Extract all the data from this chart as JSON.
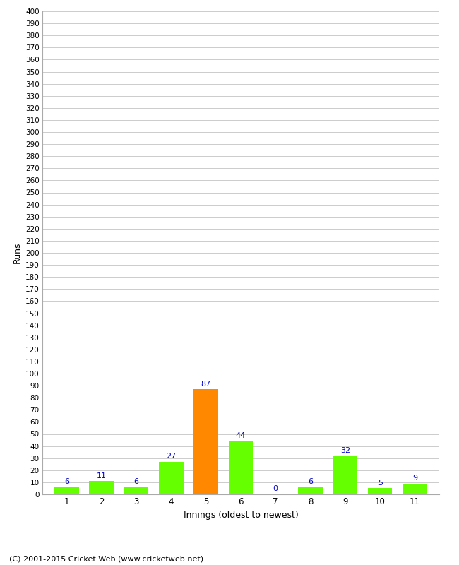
{
  "innings": [
    1,
    2,
    3,
    4,
    5,
    6,
    7,
    8,
    9,
    10,
    11
  ],
  "runs": [
    6,
    11,
    6,
    27,
    87,
    44,
    0,
    6,
    32,
    5,
    9
  ],
  "bar_colors": [
    "#66ff00",
    "#66ff00",
    "#66ff00",
    "#66ff00",
    "#ff8800",
    "#66ff00",
    "#66ff00",
    "#66ff00",
    "#66ff00",
    "#66ff00",
    "#66ff00"
  ],
  "label_color": "#0000cc",
  "ylabel": "Runs",
  "xlabel": "Innings (oldest to newest)",
  "ylim": [
    0,
    400
  ],
  "ytick_step": 10,
  "background_color": "#ffffff",
  "grid_color": "#cccccc",
  "footer": "(C) 2001-2015 Cricket Web (www.cricketweb.net)"
}
